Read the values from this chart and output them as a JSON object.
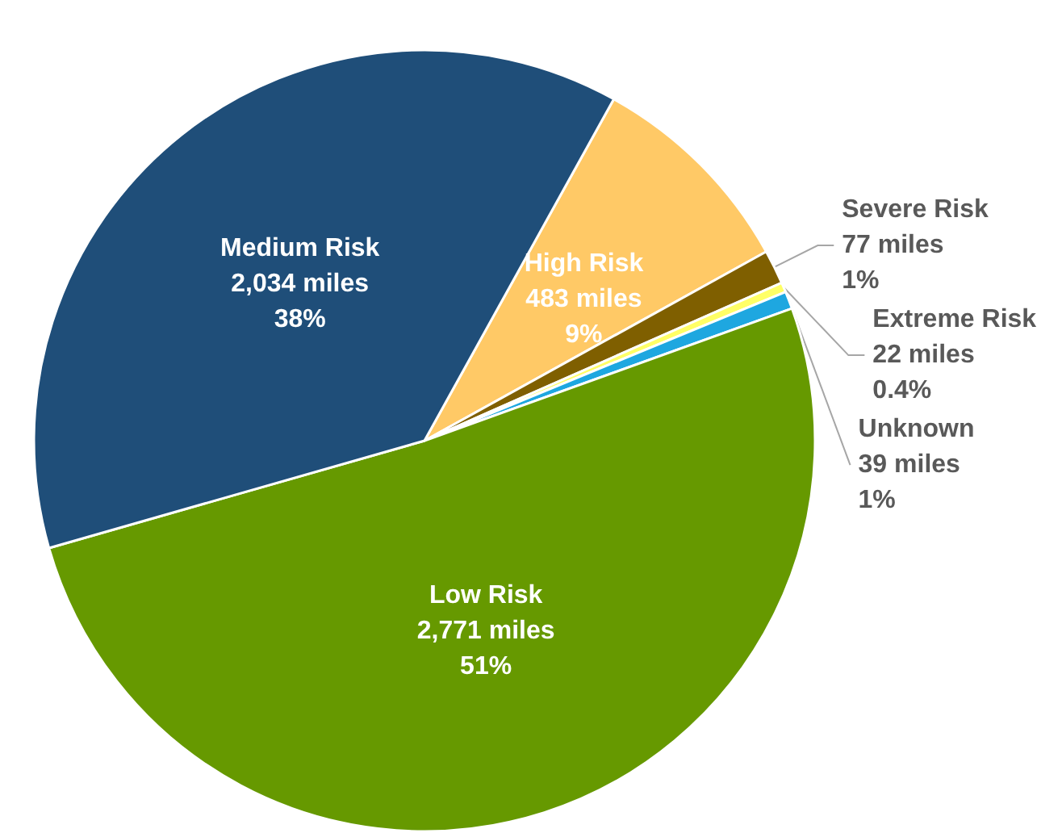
{
  "chart_data": {
    "type": "pie",
    "categories": [
      "High Risk",
      "Severe Risk",
      "Extreme Risk",
      "Unknown",
      "Low Risk",
      "Medium Risk"
    ],
    "values": [
      483,
      77,
      22,
      39,
      2771,
      2034
    ],
    "colors": [
      "#ffc966",
      "#7f5f00",
      "#ffff66",
      "#1ea7e0",
      "#669900",
      "#1f4e79"
    ],
    "value_labels": [
      "483 miles\n9%",
      "77 miles\n1%",
      "22 miles\n0.4%",
      "39 miles\n1%",
      "2,771 miles\n51%",
      "2,034 miles\n38%"
    ],
    "legend": false
  }
}
